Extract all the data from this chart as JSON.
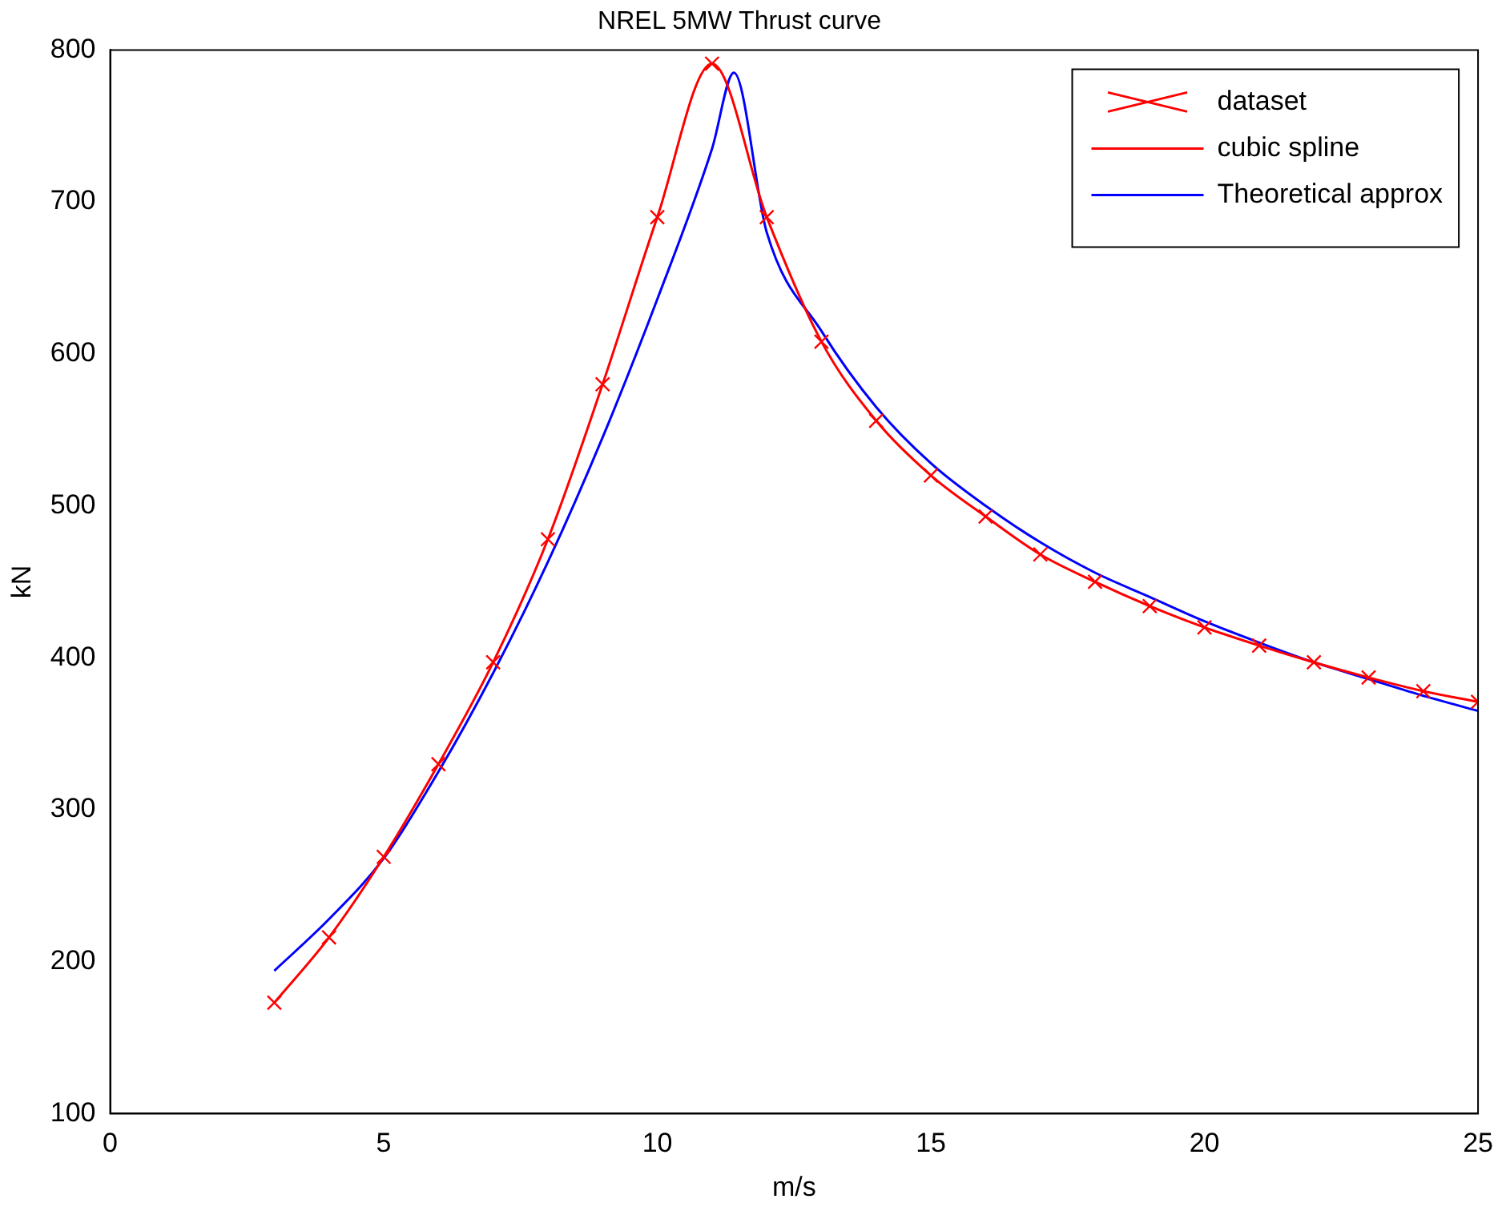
{
  "chart_data": {
    "type": "line",
    "title": "NREL 5MW Thrust curve",
    "xlabel": "m/s",
    "ylabel": "kN",
    "xlim": [
      0,
      25
    ],
    "xticks": [
      0,
      5,
      10,
      15,
      20,
      25
    ],
    "ylim": [
      100,
      800
    ],
    "yticks": [
      100,
      200,
      300,
      400,
      500,
      600,
      700,
      800
    ],
    "grid": false,
    "legend": "top right",
    "line_style": "solid",
    "series": [
      {
        "name": "dataset",
        "type": "scatter",
        "marker": "cross",
        "color": "#ff0000",
        "x": [
          3,
          4,
          5,
          6,
          7,
          8,
          9,
          10,
          11,
          12,
          13,
          14,
          15,
          16,
          17,
          18,
          19,
          20,
          21,
          22,
          23,
          24,
          25
        ],
        "values": [
          173,
          216,
          269,
          330,
          397,
          478,
          580,
          690,
          791,
          690,
          608,
          556,
          520,
          493,
          468,
          450,
          434,
          420,
          408,
          397,
          387,
          378,
          371
        ]
      },
      {
        "name": "cubic spline",
        "marker": "none",
        "color": "#ff0000",
        "x": [
          3,
          4,
          5,
          6,
          7,
          8,
          9,
          10,
          11,
          12,
          13,
          14,
          15,
          16,
          17,
          18,
          19,
          20,
          21,
          22,
          23,
          24,
          25
        ],
        "values": [
          173,
          216,
          269,
          330,
          397,
          478,
          580,
          690,
          791,
          690,
          608,
          556,
          520,
          493,
          468,
          450,
          434,
          420,
          408,
          397,
          387,
          378,
          371
        ]
      },
      {
        "name": "Theoretical approx",
        "marker": "none",
        "color": "#0000ff",
        "x": [
          3,
          4,
          5,
          6,
          7,
          8,
          9,
          10,
          11,
          11.4,
          12,
          13,
          14,
          15,
          16,
          17,
          18,
          19,
          20,
          21,
          22,
          23,
          24,
          25
        ],
        "values": [
          194,
          228,
          268,
          325,
          390,
          463,
          545,
          636,
          735,
          785,
          680,
          615,
          565,
          528,
          500,
          476,
          456,
          440,
          424,
          410,
          397,
          386,
          375,
          365
        ]
      }
    ]
  }
}
